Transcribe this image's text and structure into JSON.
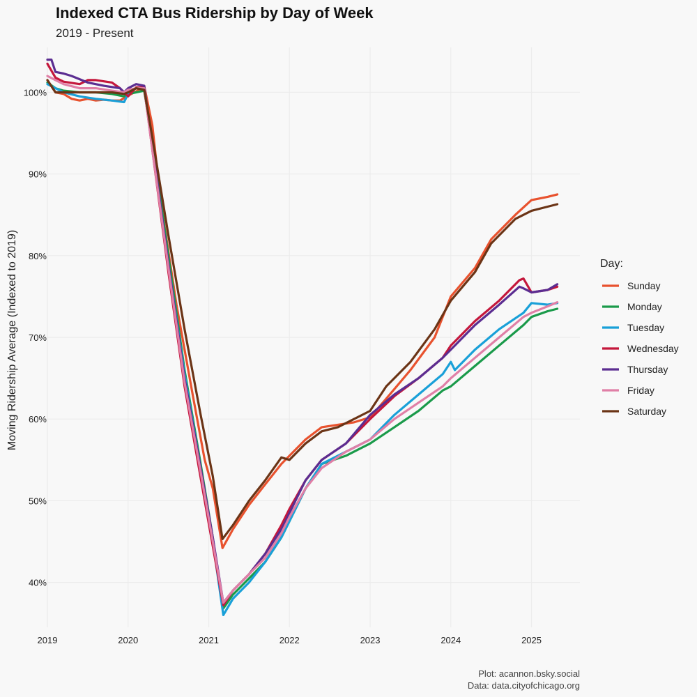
{
  "chart_data": {
    "type": "line",
    "title": "Indexed CTA Bus Ridership by Day of Week",
    "subtitle": "2019 - Present",
    "xlabel": "",
    "ylabel": "Moving Ridership Average (Indexed to 2019)",
    "xlim": [
      2019.0,
      2025.6
    ],
    "ylim": [
      34.5,
      105.5
    ],
    "x_ticks": [
      2019,
      2020,
      2021,
      2022,
      2023,
      2024,
      2025
    ],
    "x_tick_labels": [
      "2019",
      "2020",
      "2021",
      "2022",
      "2023",
      "2024",
      "2025"
    ],
    "y_ticks": [
      40,
      50,
      60,
      70,
      80,
      90,
      100
    ],
    "y_tick_labels": [
      "40%",
      "50%",
      "60%",
      "70%",
      "80%",
      "90%",
      "100%"
    ],
    "grid": true,
    "legend_title": "Day:",
    "legend_position": "right",
    "series": [
      {
        "name": "Sunday",
        "color": "#e8522e",
        "x": [
          2019.0,
          2019.1,
          2019.2,
          2019.3,
          2019.4,
          2019.5,
          2019.6,
          2019.7,
          2019.8,
          2019.9,
          2020.0,
          2020.1,
          2020.2,
          2020.3,
          2020.4,
          2020.6,
          2020.8,
          2020.95,
          2021.05,
          2021.17,
          2021.3,
          2021.5,
          2021.7,
          2021.9,
          2022.0,
          2022.2,
          2022.4,
          2022.6,
          2022.8,
          2023.0,
          2023.2,
          2023.5,
          2023.8,
          2024.0,
          2024.3,
          2024.5,
          2024.8,
          2025.0,
          2025.2,
          2025.32
        ],
        "y": [
          101.5,
          100.0,
          99.8,
          99.2,
          99.0,
          99.2,
          99.0,
          99.1,
          99.0,
          99.0,
          99.6,
          100.1,
          100.8,
          96.0,
          87.0,
          74.0,
          63.0,
          55.0,
          51.5,
          44.2,
          46.5,
          49.5,
          52.0,
          54.5,
          55.5,
          57.5,
          59.0,
          59.3,
          59.6,
          60.2,
          62.5,
          66.0,
          70.0,
          75.0,
          78.5,
          82.0,
          85.0,
          86.8,
          87.2,
          87.5
        ]
      },
      {
        "name": "Monday",
        "color": "#1a9a4a",
        "x": [
          2019.0,
          2019.1,
          2019.2,
          2019.4,
          2019.6,
          2019.8,
          2019.95,
          2020.0,
          2020.1,
          2020.2,
          2020.3,
          2020.5,
          2020.7,
          2020.9,
          2021.05,
          2021.18,
          2021.3,
          2021.5,
          2021.7,
          2021.9,
          2022.0,
          2022.2,
          2022.4,
          2022.7,
          2023.0,
          2023.3,
          2023.6,
          2023.9,
          2024.0,
          2024.3,
          2024.6,
          2024.9,
          2025.0,
          2025.2,
          2025.32
        ],
        "y": [
          101.2,
          100.5,
          100.2,
          100.0,
          100.0,
          99.8,
          99.5,
          99.8,
          100.0,
          100.2,
          94.0,
          80.0,
          66.0,
          54.5,
          45.5,
          36.8,
          38.5,
          40.5,
          42.5,
          45.5,
          47.5,
          51.5,
          54.5,
          55.5,
          57.0,
          59.0,
          61.0,
          63.5,
          64.0,
          66.5,
          69.0,
          71.5,
          72.5,
          73.2,
          73.5
        ]
      },
      {
        "name": "Tuesday",
        "color": "#19a0d8",
        "x": [
          2019.0,
          2019.1,
          2019.2,
          2019.4,
          2019.6,
          2019.8,
          2019.95,
          2020.0,
          2020.1,
          2020.2,
          2020.3,
          2020.5,
          2020.7,
          2020.9,
          2021.05,
          2021.18,
          2021.3,
          2021.5,
          2021.7,
          2021.9,
          2022.0,
          2022.2,
          2022.4,
          2022.7,
          2023.0,
          2023.3,
          2023.6,
          2023.9,
          2024.0,
          2024.05,
          2024.3,
          2024.6,
          2024.9,
          2025.0,
          2025.2,
          2025.32
        ],
        "y": [
          101.0,
          100.5,
          100.0,
          99.5,
          99.2,
          99.0,
          98.8,
          99.8,
          100.5,
          100.6,
          93.5,
          79.0,
          65.5,
          54.0,
          45.0,
          36.0,
          38.0,
          40.0,
          42.5,
          45.5,
          47.5,
          51.5,
          54.5,
          56.0,
          57.5,
          60.5,
          63.0,
          65.5,
          67.0,
          66.0,
          68.5,
          71.0,
          73.0,
          74.2,
          74.0,
          74.2
        ]
      },
      {
        "name": "Wednesday",
        "color": "#c4173c",
        "x": [
          2019.0,
          2019.1,
          2019.2,
          2019.4,
          2019.5,
          2019.6,
          2019.8,
          2019.9,
          2020.0,
          2020.1,
          2020.2,
          2020.3,
          2020.5,
          2020.7,
          2020.95,
          2021.18,
          2021.3,
          2021.5,
          2021.7,
          2021.9,
          2022.0,
          2022.2,
          2022.4,
          2022.7,
          2023.0,
          2023.3,
          2023.6,
          2023.9,
          2024.0,
          2024.3,
          2024.6,
          2024.85,
          2024.9,
          2025.0,
          2025.2,
          2025.32
        ],
        "y": [
          103.5,
          101.8,
          101.3,
          101.0,
          101.5,
          101.5,
          101.2,
          100.5,
          99.5,
          100.6,
          100.6,
          93.0,
          78.0,
          64.0,
          50.0,
          37.2,
          39.0,
          41.0,
          43.5,
          47.0,
          49.0,
          52.5,
          55.0,
          57.0,
          60.0,
          62.8,
          65.0,
          67.5,
          69.0,
          72.0,
          74.5,
          77.0,
          77.2,
          75.5,
          75.8,
          76.2
        ]
      },
      {
        "name": "Thursday",
        "color": "#5b2d91",
        "x": [
          2019.0,
          2019.05,
          2019.1,
          2019.2,
          2019.3,
          2019.5,
          2019.7,
          2019.9,
          2019.95,
          2020.0,
          2020.1,
          2020.2,
          2020.3,
          2020.5,
          2020.7,
          2020.9,
          2021.05,
          2021.18,
          2021.3,
          2021.5,
          2021.7,
          2021.9,
          2022.0,
          2022.2,
          2022.4,
          2022.7,
          2023.0,
          2023.3,
          2023.6,
          2023.9,
          2024.0,
          2024.3,
          2024.6,
          2024.85,
          2024.9,
          2025.0,
          2025.2,
          2025.32
        ],
        "y": [
          104.0,
          104.0,
          102.5,
          102.3,
          102.0,
          101.2,
          100.8,
          100.5,
          100.0,
          100.5,
          101.0,
          100.8,
          93.5,
          79.0,
          65.0,
          54.0,
          45.5,
          37.5,
          39.0,
          41.0,
          43.5,
          46.5,
          48.5,
          52.5,
          55.0,
          57.0,
          60.5,
          63.0,
          65.0,
          67.5,
          68.5,
          71.5,
          74.0,
          76.2,
          76.0,
          75.5,
          75.8,
          76.5
        ]
      },
      {
        "name": "Friday",
        "color": "#e07fa6",
        "x": [
          2019.0,
          2019.1,
          2019.2,
          2019.4,
          2019.6,
          2019.8,
          2019.95,
          2020.0,
          2020.1,
          2020.2,
          2020.3,
          2020.5,
          2020.7,
          2020.9,
          2021.05,
          2021.18,
          2021.3,
          2021.5,
          2021.7,
          2021.9,
          2022.0,
          2022.2,
          2022.4,
          2022.7,
          2023.0,
          2023.3,
          2023.6,
          2023.9,
          2024.0,
          2024.3,
          2024.6,
          2024.9,
          2025.0,
          2025.2,
          2025.32
        ],
        "y": [
          102.0,
          101.5,
          101.0,
          100.5,
          100.5,
          100.2,
          100.0,
          100.3,
          100.5,
          100.5,
          93.0,
          78.5,
          64.5,
          53.5,
          45.0,
          37.5,
          39.0,
          41.0,
          43.0,
          46.0,
          48.0,
          51.5,
          54.0,
          56.0,
          57.5,
          60.0,
          62.0,
          64.0,
          65.0,
          67.5,
          70.0,
          72.5,
          73.0,
          73.8,
          74.3
        ]
      },
      {
        "name": "Saturday",
        "color": "#6b3416",
        "x": [
          2019.0,
          2019.1,
          2019.2,
          2019.4,
          2019.6,
          2019.8,
          2019.95,
          2020.0,
          2020.1,
          2020.2,
          2020.3,
          2020.5,
          2020.7,
          2020.9,
          2021.05,
          2021.17,
          2021.3,
          2021.5,
          2021.7,
          2021.9,
          2022.0,
          2022.2,
          2022.4,
          2022.6,
          2022.8,
          2023.0,
          2023.2,
          2023.5,
          2023.8,
          2024.0,
          2024.3,
          2024.5,
          2024.8,
          2025.0,
          2025.2,
          2025.32
        ],
        "y": [
          101.5,
          100.0,
          100.0,
          100.0,
          100.0,
          100.0,
          99.8,
          100.0,
          100.5,
          100.3,
          94.5,
          82.5,
          71.0,
          60.5,
          53.0,
          45.3,
          47.0,
          50.0,
          52.5,
          55.3,
          55.0,
          57.0,
          58.5,
          59.0,
          60.0,
          61.0,
          64.0,
          67.0,
          71.0,
          74.5,
          78.0,
          81.5,
          84.5,
          85.5,
          86.0,
          86.3
        ]
      }
    ]
  },
  "caption": {
    "line1": "Plot: acannon.bsky.social",
    "line2": "Data: data.cityofchicago.org"
  }
}
